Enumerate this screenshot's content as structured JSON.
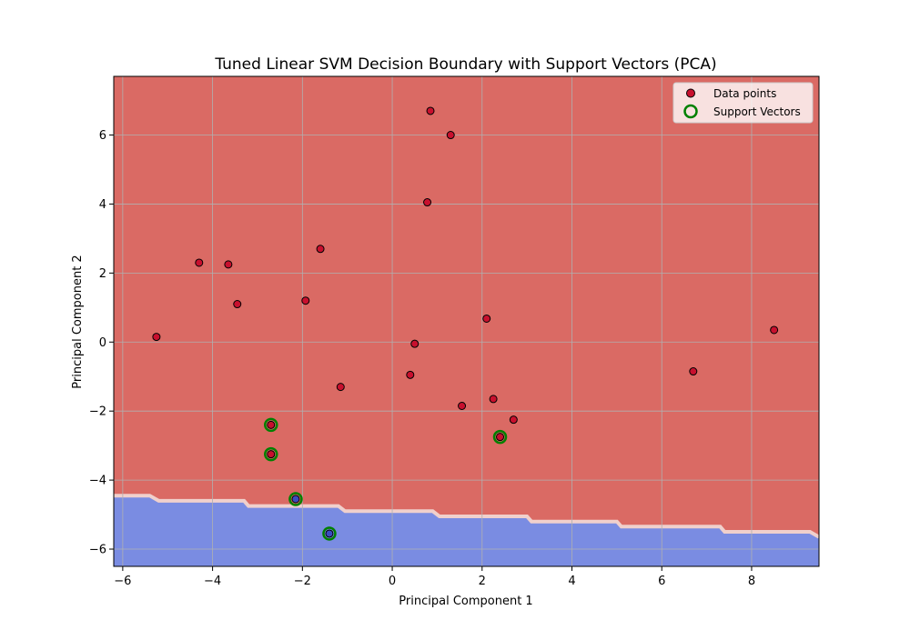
{
  "chart_data": {
    "type": "scatter",
    "title": "Tuned Linear SVM Decision Boundary with Support Vectors (PCA)",
    "xlabel": "Principal Component 1",
    "ylabel": "Principal Component 2",
    "xlim": [
      -6.2,
      9.5
    ],
    "ylim": [
      -6.5,
      7.7
    ],
    "xticks": [
      -6,
      -4,
      -2,
      0,
      2,
      4,
      6,
      8
    ],
    "yticks": [
      -6,
      -4,
      -2,
      0,
      2,
      4,
      6
    ],
    "xtick_labels": [
      "−6",
      "−4",
      "−2",
      "0",
      "2",
      "4",
      "6",
      "8"
    ],
    "ytick_labels": [
      "−6",
      "−4",
      "−2",
      "0",
      "2",
      "4",
      "6"
    ],
    "grid": true,
    "legend_position": "top-right",
    "legend": {
      "data_points": "Data points",
      "support_vectors": "Support Vectors"
    },
    "colors": {
      "region_red": "#da6a64",
      "region_blue": "#7a8ce2",
      "boundary": "#f0d0cc",
      "point_red": "#c8102e",
      "point_blue": "#3b4cc0",
      "point_edge": "#000000",
      "support_ring": "#008000",
      "grid": "#b0b0b0"
    },
    "boundary": {
      "x": [
        -6.2,
        -5.4,
        -5.2,
        -3.3,
        -3.2,
        -1.2,
        -1.05,
        0.9,
        1.05,
        3.0,
        3.1,
        5.0,
        5.1,
        7.3,
        7.4,
        9.3,
        9.5
      ],
      "y": [
        -4.45,
        -4.45,
        -4.6,
        -4.6,
        -4.75,
        -4.75,
        -4.9,
        -4.9,
        -5.05,
        -5.05,
        -5.2,
        -5.2,
        -5.35,
        -5.35,
        -5.5,
        -5.5,
        -5.65
      ]
    },
    "series": [
      {
        "name": "Data points",
        "points": [
          {
            "x": 0.85,
            "y": 6.7,
            "cls": "red"
          },
          {
            "x": 1.3,
            "y": 6.0,
            "cls": "red"
          },
          {
            "x": 0.78,
            "y": 4.05,
            "cls": "red"
          },
          {
            "x": -4.3,
            "y": 2.3,
            "cls": "red"
          },
          {
            "x": -3.65,
            "y": 2.25,
            "cls": "red"
          },
          {
            "x": -1.6,
            "y": 2.7,
            "cls": "red"
          },
          {
            "x": -3.45,
            "y": 1.1,
            "cls": "red"
          },
          {
            "x": -1.93,
            "y": 1.2,
            "cls": "red"
          },
          {
            "x": -5.25,
            "y": 0.15,
            "cls": "red"
          },
          {
            "x": 2.1,
            "y": 0.68,
            "cls": "red"
          },
          {
            "x": 0.5,
            "y": -0.05,
            "cls": "red"
          },
          {
            "x": 8.5,
            "y": 0.35,
            "cls": "red"
          },
          {
            "x": 0.4,
            "y": -0.95,
            "cls": "red"
          },
          {
            "x": -1.15,
            "y": -1.3,
            "cls": "red"
          },
          {
            "x": 6.7,
            "y": -0.85,
            "cls": "red"
          },
          {
            "x": 2.25,
            "y": -1.65,
            "cls": "red"
          },
          {
            "x": 1.55,
            "y": -1.85,
            "cls": "red"
          },
          {
            "x": 2.7,
            "y": -2.25,
            "cls": "red"
          },
          {
            "x": -2.7,
            "y": -2.4,
            "cls": "red"
          },
          {
            "x": -2.7,
            "y": -3.25,
            "cls": "red"
          },
          {
            "x": 2.4,
            "y": -2.75,
            "cls": "red"
          },
          {
            "x": -2.15,
            "y": -4.55,
            "cls": "blue"
          },
          {
            "x": -1.4,
            "y": -5.55,
            "cls": "blue"
          }
        ]
      },
      {
        "name": "Support Vectors",
        "points": [
          {
            "x": -2.7,
            "y": -2.4
          },
          {
            "x": -2.7,
            "y": -3.25
          },
          {
            "x": 2.4,
            "y": -2.75
          },
          {
            "x": -2.15,
            "y": -4.55
          },
          {
            "x": -1.4,
            "y": -5.55
          }
        ]
      }
    ]
  }
}
